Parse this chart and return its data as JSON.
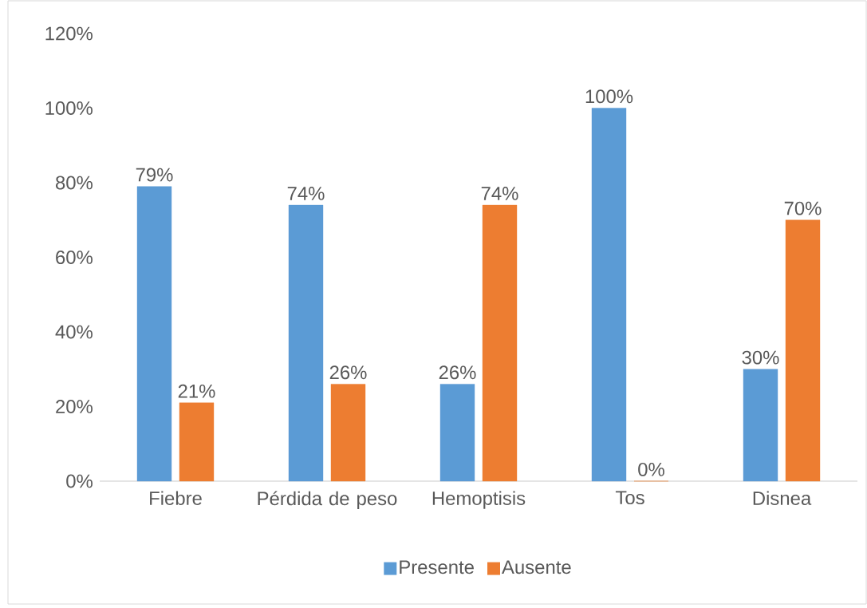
{
  "chart_data": {
    "type": "bar",
    "categories": [
      "Fiebre",
      "Pérdida de peso",
      "Hemoptisis",
      "Tos",
      "Disnea"
    ],
    "series": [
      {
        "name": "Presente",
        "color": "#5b9bd5",
        "values": [
          79,
          74,
          26,
          100,
          30
        ],
        "value_labels": [
          "79%",
          "74%",
          "26%",
          "100%",
          "30%"
        ]
      },
      {
        "name": "Ausente",
        "color": "#ed7d31",
        "values": [
          21,
          26,
          74,
          0,
          70
        ],
        "value_labels": [
          "21%",
          "26%",
          "74%",
          "0%",
          "70%"
        ]
      }
    ],
    "ylim": [
      0,
      120
    ],
    "yticks": [
      {
        "value": 0,
        "label": "0%"
      },
      {
        "value": 20,
        "label": "20%"
      },
      {
        "value": 40,
        "label": "40%"
      },
      {
        "value": 60,
        "label": "60%"
      },
      {
        "value": 80,
        "label": "80%"
      },
      {
        "value": 100,
        "label": "100%"
      },
      {
        "value": 120,
        "label": "120%"
      }
    ],
    "legend": "bottom"
  }
}
